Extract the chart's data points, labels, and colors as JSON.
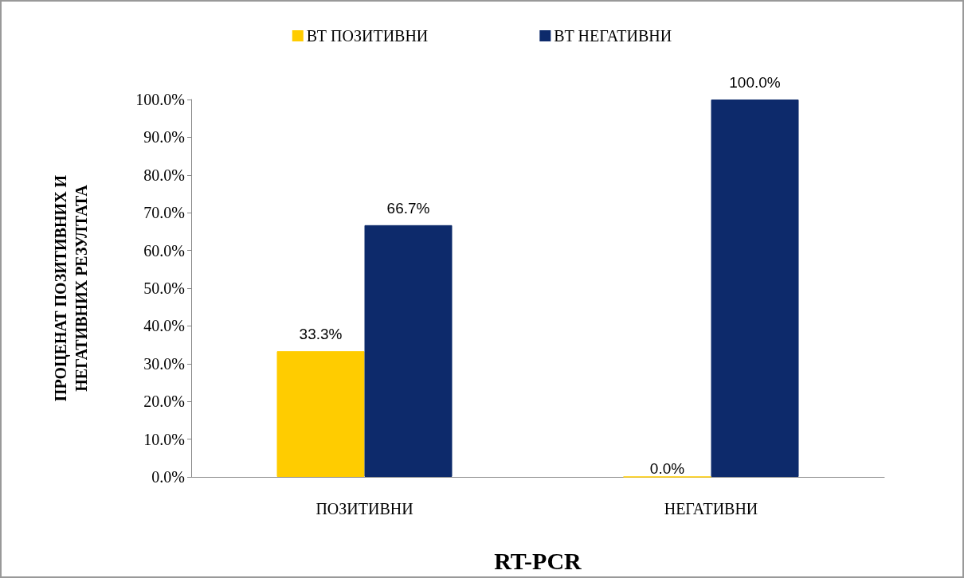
{
  "chart_data": {
    "type": "bar",
    "xlabel": "RT-PCR",
    "ylabel": "ПРОЦЕНАТ ПОЗИТИВНИХ И\nНЕГАТИВНИХ РЕЗУЛТАТА",
    "categories": [
      "ПОЗИТИВНИ",
      "НЕГАТИВНИ"
    ],
    "series": [
      {
        "name": "ВТ ПОЗИТИВНИ",
        "color": "#ffcc00",
        "values": [
          33.3,
          0
        ],
        "value_labels": [
          "33.3%",
          "0.0%"
        ]
      },
      {
        "name": "ВТ НЕГАТИВНИ",
        "color": "#0d2a6b",
        "values": [
          66.7,
          100
        ],
        "value_labels": [
          "66.7%",
          "100.0%"
        ]
      }
    ],
    "ylim": [
      0,
      100
    ],
    "yticks": [
      {
        "value": 0,
        "label": "0.0%"
      },
      {
        "value": 10,
        "label": "10.0%"
      },
      {
        "value": 20,
        "label": "20.0%"
      },
      {
        "value": 30,
        "label": "30.0%"
      },
      {
        "value": 40,
        "label": "40.0%"
      },
      {
        "value": 50,
        "label": "50.0%"
      },
      {
        "value": 60,
        "label": "60.0%"
      },
      {
        "value": 70,
        "label": "70.0%"
      },
      {
        "value": 80,
        "label": "80.0%"
      },
      {
        "value": 90,
        "label": "90.0%"
      },
      {
        "value": 100,
        "label": "100.0%"
      }
    ],
    "grid": false,
    "legend": "top"
  }
}
